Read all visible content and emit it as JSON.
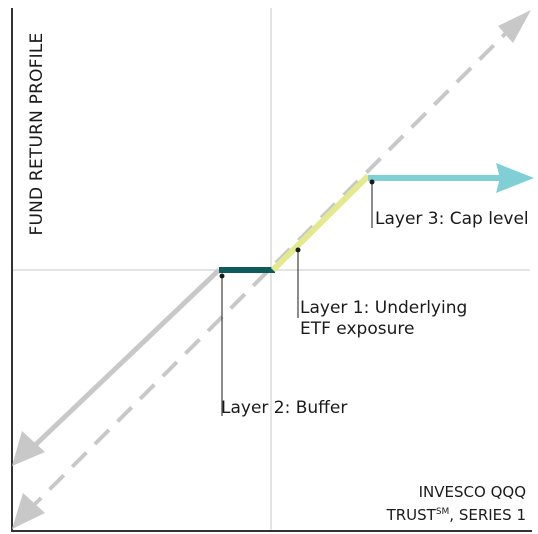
{
  "y_axis_label": "FUND RETURN PROFILE",
  "corner_label": {
    "line1": "INVESCO QQQ",
    "line2_main": "TRUST",
    "line2_superscript": "SM",
    "line2_rest": ", SERIES 1"
  },
  "annotations": {
    "layer1_line1": "Layer 1: Underlying",
    "layer1_line2": "ETF exposure",
    "layer2": "Layer 2: Buffer",
    "layer3": "Layer 3: Cap level"
  },
  "colors": {
    "axis": "#333333",
    "gridline": "#c8c8c8",
    "dashed_reference": "#c8c8c8",
    "downside_arrow": "#c8c8c8",
    "buffer": "#0f5a5a",
    "underlying_exposure": "#e3e98c",
    "cap_arrow": "#7fcfd4",
    "leader_line": "#1a1a1a"
  }
}
